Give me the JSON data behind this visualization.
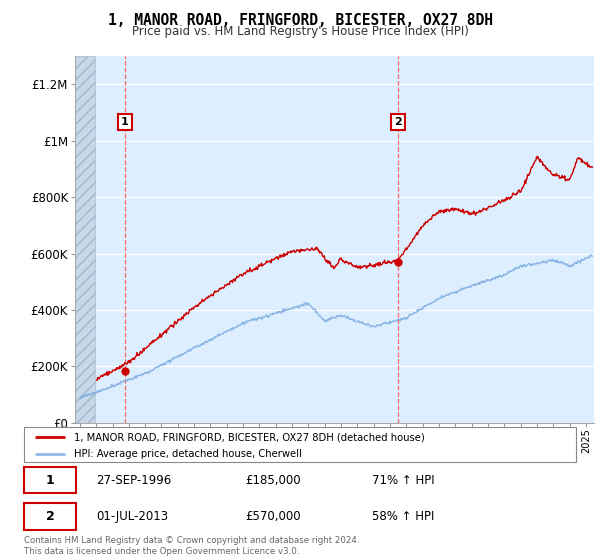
{
  "title": "1, MANOR ROAD, FRINGFORD, BICESTER, OX27 8DH",
  "subtitle": "Price paid vs. HM Land Registry's House Price Index (HPI)",
  "ylabel_ticks": [
    "£0",
    "£200K",
    "£400K",
    "£600K",
    "£800K",
    "£1M",
    "£1.2M"
  ],
  "ytick_values": [
    0,
    200000,
    400000,
    600000,
    800000,
    1000000,
    1200000
  ],
  "ylim": [
    0,
    1300000
  ],
  "xlim_start": 1993.7,
  "xlim_end": 2025.5,
  "legend_label_red": "1, MANOR ROAD, FRINGFORD, BICESTER, OX27 8DH (detached house)",
  "legend_label_blue": "HPI: Average price, detached house, Cherwell",
  "transaction1_date": 1996.74,
  "transaction1_price": 185000,
  "transaction1_label": "1",
  "transaction2_date": 2013.5,
  "transaction2_price": 570000,
  "transaction2_label": "2",
  "annotation1_date": "27-SEP-1996",
  "annotation1_price": "£185,000",
  "annotation1_hpi": "71% ↑ HPI",
  "annotation2_date": "01-JUL-2013",
  "annotation2_price": "£570,000",
  "annotation2_hpi": "58% ↑ HPI",
  "footer": "Contains HM Land Registry data © Crown copyright and database right 2024.\nThis data is licensed under the Open Government Licence v3.0.",
  "color_red": "#cc0000",
  "color_blue": "#7aabe0",
  "background_fill": "#ddeeff",
  "hatch_color": "#bbccdd",
  "grid_color": "#ffffff"
}
